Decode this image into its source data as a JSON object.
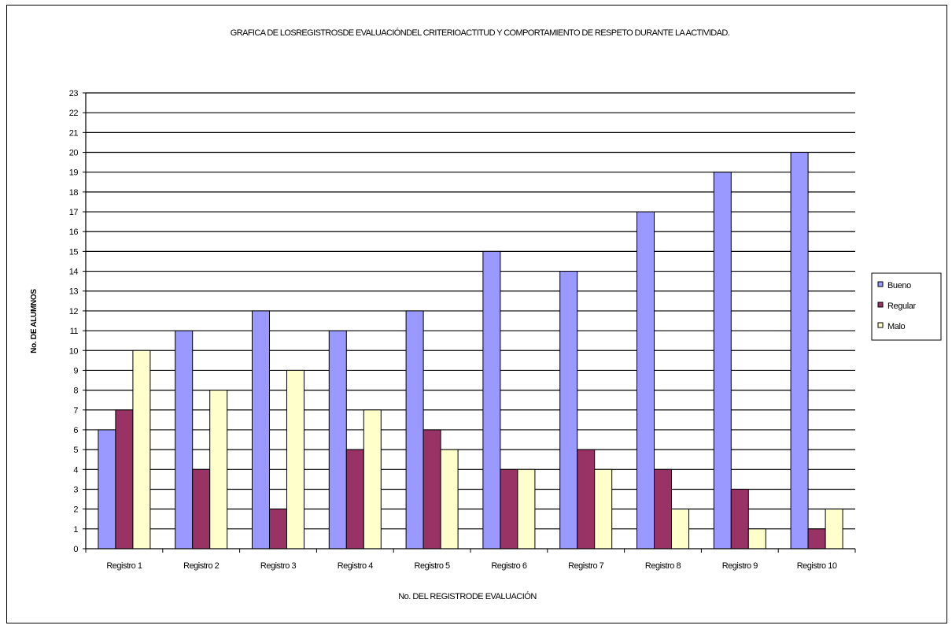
{
  "chart_data": {
    "type": "bar",
    "title": "GRAFICA DE LOSREGISTROSDE EVALUACIÓNDEL CRITERIOACTITUD Y COMPORTAMIENTO DE RESPETO DURANTE LA ACTIVIDAD.",
    "xlabel": "No. DEL REGISTRODE EVALUACIÓN",
    "ylabel": "No. DE ALUMNOS",
    "ylim": [
      0,
      23
    ],
    "grid": true,
    "legend_position": "right",
    "categories": [
      "Registro 1",
      "Registro 2",
      "Registro 3",
      "Registro 4",
      "Registro 5",
      "Registro 6",
      "Registro 7",
      "Registro 8",
      "Registro 9",
      "Registro 10"
    ],
    "series": [
      {
        "name": "Bueno",
        "color": "#9999FF",
        "values": [
          6,
          11,
          12,
          11,
          12,
          15,
          14,
          17,
          19,
          20
        ]
      },
      {
        "name": "Regular",
        "color": "#993366",
        "values": [
          7,
          4,
          2,
          5,
          6,
          4,
          5,
          4,
          3,
          1
        ]
      },
      {
        "name": "Malo",
        "color": "#FFFFCC",
        "values": [
          10,
          8,
          9,
          7,
          5,
          4,
          4,
          2,
          1,
          2
        ]
      }
    ]
  }
}
